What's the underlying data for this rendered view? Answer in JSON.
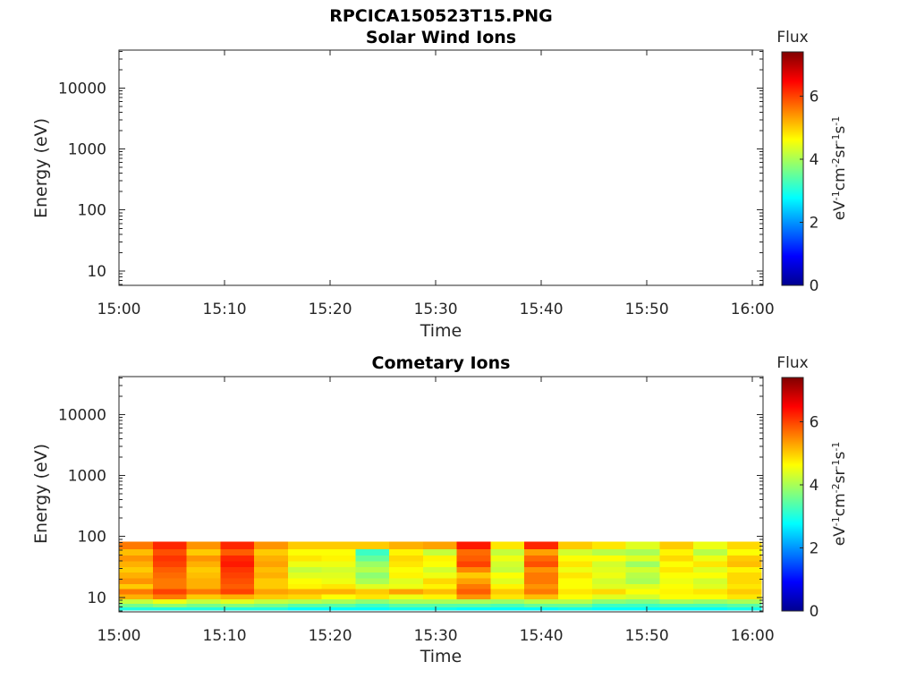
{
  "figure_title": "RPCICA150523T15.PNG",
  "chart_data": [
    {
      "type": "heatmap",
      "title": "Solar Wind Ions",
      "xlabel": "Time",
      "ylabel": "Energy (eV)",
      "y_scale": "log",
      "x_range": [
        "15:00",
        "16:01"
      ],
      "ylim": [
        5.8,
        42000
      ],
      "x_tick_labels": [
        "15:00",
        "15:10",
        "15:20",
        "15:30",
        "15:40",
        "15:50",
        "16:00"
      ],
      "y_tick_labels": [
        "10",
        "100",
        "1000",
        "10000"
      ],
      "colorbar": {
        "title": "Flux",
        "label": "eV-1cm-2sr-1s-1",
        "range": [
          0,
          7.4
        ],
        "tick_labels": [
          "0",
          "2",
          "4",
          "6"
        ],
        "colormap": "jet"
      },
      "data": "empty"
    },
    {
      "type": "heatmap",
      "title": "Cometary Ions",
      "xlabel": "Time",
      "ylabel": "Energy (eV)",
      "y_scale": "log",
      "x_range": [
        "15:00",
        "16:01"
      ],
      "ylim": [
        5.8,
        42000
      ],
      "x_tick_labels": [
        "15:00",
        "15:10",
        "15:20",
        "15:30",
        "15:40",
        "15:50",
        "16:00"
      ],
      "y_tick_labels": [
        "10",
        "100",
        "1000",
        "10000"
      ],
      "colorbar": {
        "title": "Flux",
        "label": "eV-1cm-2sr-1s-1",
        "range": [
          0,
          7.4
        ],
        "tick_labels": [
          "0",
          "2",
          "4",
          "6"
        ],
        "colormap": "jet"
      },
      "energy_edges_eV": [
        6.2,
        7.0,
        8.0,
        9.5,
        11.5,
        14,
        17,
        21,
        26,
        32,
        40,
        50,
        63,
        82
      ],
      "time_edges_min": [
        0,
        3.2,
        6.4,
        9.6,
        12.8,
        16.0,
        19.2,
        22.4,
        25.6,
        28.8,
        32.0,
        35.2,
        38.4,
        41.6,
        44.8,
        48.0,
        51.2,
        54.4,
        57.6,
        60.8
      ],
      "flux": [
        [
          3.0,
          3.6,
          4.2,
          5.2,
          5.6,
          5.0,
          5.4,
          5.2,
          5.0,
          5.2,
          5.4,
          5.1,
          5.6
        ],
        [
          3.0,
          3.8,
          4.5,
          5.6,
          6.0,
          5.6,
          5.6,
          5.7,
          5.8,
          6.0,
          6.1,
          5.9,
          6.2
        ],
        [
          3.0,
          3.6,
          4.2,
          5.0,
          5.6,
          5.2,
          5.2,
          5.1,
          5.0,
          5.2,
          5.4,
          5.0,
          5.4
        ],
        [
          3.0,
          3.7,
          4.4,
          5.2,
          6.0,
          5.8,
          5.9,
          6.0,
          6.1,
          6.3,
          6.2,
          5.8,
          6.2
        ],
        [
          3.0,
          3.6,
          4.2,
          5.0,
          5.3,
          5.0,
          5.0,
          5.2,
          5.1,
          5.3,
          5.2,
          5.0,
          5.4
        ],
        [
          2.8,
          3.4,
          4.1,
          4.9,
          5.2,
          4.7,
          4.6,
          4.4,
          4.2,
          4.5,
          4.8,
          4.6,
          5.0
        ],
        [
          2.8,
          3.4,
          4.0,
          4.6,
          5.2,
          4.8,
          4.5,
          4.4,
          4.3,
          4.5,
          4.7,
          4.6,
          5.0
        ],
        [
          2.8,
          3.2,
          3.8,
          4.8,
          5.0,
          4.4,
          4.0,
          3.8,
          4.1,
          3.9,
          3.5,
          3.2,
          5.0
        ],
        [
          2.9,
          3.4,
          4.0,
          4.5,
          5.3,
          4.5,
          4.4,
          4.7,
          4.6,
          4.8,
          4.9,
          4.7,
          5.2
        ],
        [
          2.9,
          3.4,
          4.0,
          4.7,
          5.1,
          4.7,
          4.9,
          4.5,
          4.3,
          4.6,
          4.7,
          4.2,
          5.3
        ],
        [
          2.8,
          3.4,
          4.0,
          5.4,
          5.8,
          5.6,
          5.3,
          5.0,
          5.5,
          6.0,
          5.8,
          5.7,
          6.3
        ],
        [
          2.8,
          3.3,
          3.9,
          4.8,
          5.0,
          4.7,
          4.4,
          4.6,
          4.2,
          4.3,
          4.5,
          4.2,
          4.8
        ],
        [
          2.8,
          3.5,
          4.1,
          5.1,
          5.6,
          5.4,
          5.6,
          5.6,
          5.4,
          5.9,
          5.7,
          5.3,
          6.2
        ],
        [
          2.9,
          3.5,
          4.1,
          4.6,
          4.8,
          4.6,
          4.6,
          4.8,
          4.5,
          4.8,
          4.6,
          4.3,
          5.0
        ],
        [
          2.8,
          3.2,
          3.8,
          4.4,
          4.9,
          4.4,
          4.3,
          4.5,
          4.4,
          4.3,
          4.6,
          4.1,
          4.8
        ],
        [
          2.8,
          3.2,
          3.7,
          4.3,
          4.6,
          4.4,
          4.0,
          4.1,
          4.3,
          3.9,
          4.4,
          4.0,
          4.4
        ],
        [
          2.8,
          3.3,
          4.0,
          4.6,
          4.7,
          4.6,
          4.5,
          4.6,
          4.8,
          4.6,
          4.9,
          4.7,
          5.0
        ],
        [
          2.8,
          3.3,
          3.9,
          4.6,
          4.8,
          4.4,
          4.3,
          4.6,
          4.4,
          4.8,
          4.5,
          4.1,
          4.5
        ],
        [
          2.9,
          3.4,
          4.0,
          4.8,
          5.0,
          4.8,
          4.9,
          4.9,
          4.7,
          5.1,
          5.0,
          4.6,
          4.9
        ]
      ]
    }
  ]
}
